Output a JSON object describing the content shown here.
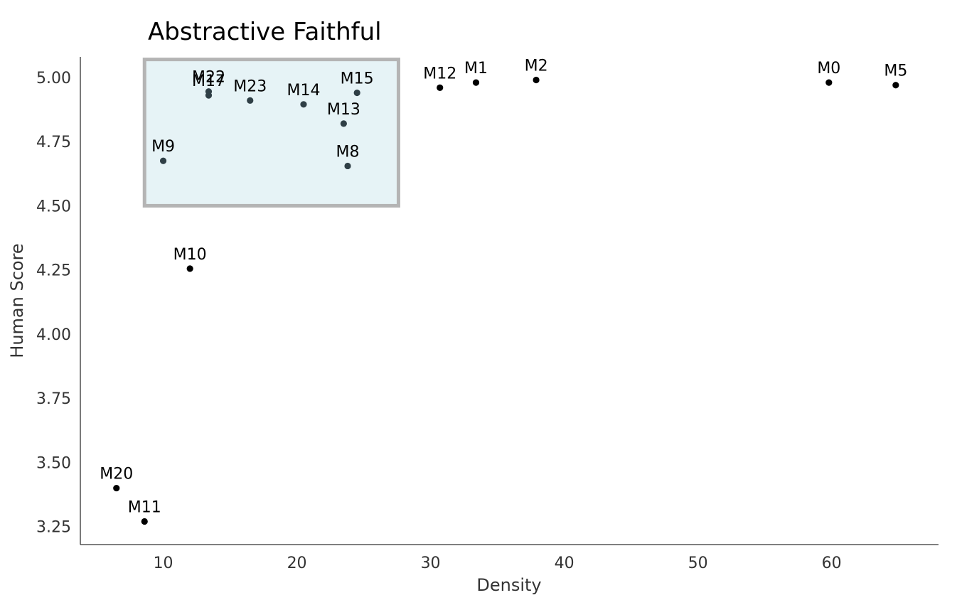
{
  "chart_data": {
    "type": "scatter",
    "title": "Abstractive Faithful",
    "xlabel": "Density",
    "ylabel": "Human Score",
    "xlim": [
      3.8,
      68
    ],
    "ylim": [
      3.18,
      5.08
    ],
    "xticks": [
      10,
      20,
      30,
      40,
      50,
      60
    ],
    "yticks": [
      3.25,
      3.5,
      3.75,
      4.0,
      4.25,
      4.5,
      4.75,
      5.0
    ],
    "grid": false,
    "highlight_box": {
      "x": [
        8.6,
        27.6
      ],
      "y": [
        4.5,
        5.07
      ]
    },
    "colors": {
      "point": "#000000",
      "point_in_box": "#2f3f46",
      "box_fill": "#e6f3f6",
      "box_stroke": "#b4b4b4",
      "axis": "#333333"
    },
    "points": [
      {
        "label": "M0",
        "x": 59.8,
        "y": 4.98
      },
      {
        "label": "M1",
        "x": 33.4,
        "y": 4.98
      },
      {
        "label": "M2",
        "x": 37.9,
        "y": 4.99
      },
      {
        "label": "M5",
        "x": 64.8,
        "y": 4.97
      },
      {
        "label": "M8",
        "x": 23.8,
        "y": 4.655
      },
      {
        "label": "M9",
        "x": 10.0,
        "y": 4.675
      },
      {
        "label": "M10",
        "x": 12.0,
        "y": 4.255
      },
      {
        "label": "M11",
        "x": 8.6,
        "y": 3.27
      },
      {
        "label": "M12",
        "x": 30.7,
        "y": 4.96
      },
      {
        "label": "M13",
        "x": 23.5,
        "y": 4.82
      },
      {
        "label": "M14",
        "x": 20.5,
        "y": 4.895
      },
      {
        "label": "M15",
        "x": 24.5,
        "y": 4.94
      },
      {
        "label": "M17",
        "x": 13.4,
        "y": 4.93
      },
      {
        "label": "M20",
        "x": 6.5,
        "y": 3.4
      },
      {
        "label": "M22",
        "x": 13.4,
        "y": 4.945
      },
      {
        "label": "M23",
        "x": 16.5,
        "y": 4.91
      }
    ]
  }
}
